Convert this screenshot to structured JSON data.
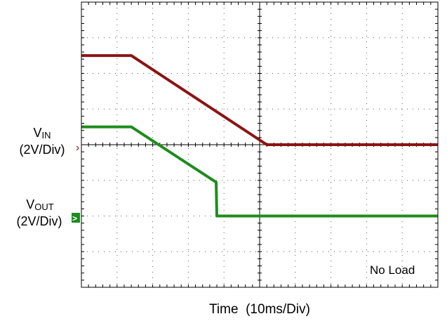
{
  "chart_data": {
    "type": "line",
    "x_grid_divisions": 10,
    "y_grid_divisions": 8,
    "xlabel": "Time  (10ms/Div)",
    "annotation": "No Load",
    "grid": true,
    "series": [
      {
        "name": "VIN",
        "label_main": "V",
        "label_sub": "IN",
        "scale": "(2V/Div)",
        "marker_glyph": "›",
        "ground_div": 4,
        "color": "#8b1414",
        "x": [
          0,
          1.4,
          5.2,
          10
        ],
        "y": [
          2.5,
          2.5,
          0,
          0
        ]
      },
      {
        "name": "VOUT",
        "label_main": "V",
        "label_sub": "OUT",
        "scale": "(2V/Div)",
        "marker_glyph": ">",
        "ground_div": 6,
        "color": "#1e8c1e",
        "x": [
          0,
          1.4,
          3.7,
          3.78,
          3.8,
          10
        ],
        "y": [
          2.5,
          2.5,
          1.0,
          0.95,
          0,
          0
        ]
      }
    ]
  }
}
